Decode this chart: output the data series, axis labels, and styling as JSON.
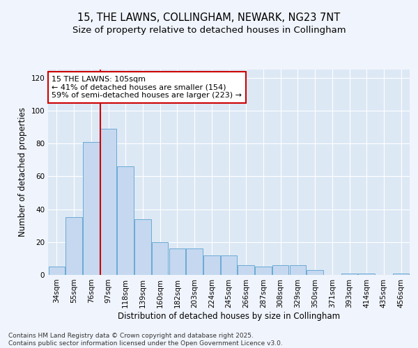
{
  "title_line1": "15, THE LAWNS, COLLINGHAM, NEWARK, NG23 7NT",
  "title_line2": "Size of property relative to detached houses in Collingham",
  "xlabel": "Distribution of detached houses by size in Collingham",
  "ylabel": "Number of detached properties",
  "categories": [
    "34sqm",
    "55sqm",
    "76sqm",
    "97sqm",
    "118sqm",
    "139sqm",
    "160sqm",
    "182sqm",
    "203sqm",
    "224sqm",
    "245sqm",
    "266sqm",
    "287sqm",
    "308sqm",
    "329sqm",
    "350sqm",
    "371sqm",
    "393sqm",
    "414sqm",
    "435sqm",
    "456sqm"
  ],
  "values": [
    5,
    35,
    81,
    89,
    66,
    34,
    20,
    16,
    16,
    12,
    12,
    6,
    5,
    6,
    6,
    3,
    0,
    1,
    1,
    0,
    1
  ],
  "bar_color": "#c5d8f0",
  "bar_edge_color": "#6aaad4",
  "plot_bg_color": "#dde8f5",
  "fig_bg_color": "#f0f4fc",
  "grid_color": "#ffffff",
  "vline_color": "#cc0000",
  "vline_x_index": 3,
  "annotation_text": "15 THE LAWNS: 105sqm\n← 41% of detached houses are smaller (154)\n59% of semi-detached houses are larger (223) →",
  "annotation_box_facecolor": "#ffffff",
  "annotation_box_edgecolor": "#cc0000",
  "ylim": [
    0,
    125
  ],
  "yticks": [
    0,
    20,
    40,
    60,
    80,
    100,
    120
  ],
  "title_fontsize": 10.5,
  "subtitle_fontsize": 9.5,
  "axis_label_fontsize": 8.5,
  "tick_fontsize": 7.5,
  "annotation_fontsize": 8,
  "footnote_fontsize": 6.5,
  "footnote": "Contains HM Land Registry data © Crown copyright and database right 2025.\nContains public sector information licensed under the Open Government Licence v3.0."
}
